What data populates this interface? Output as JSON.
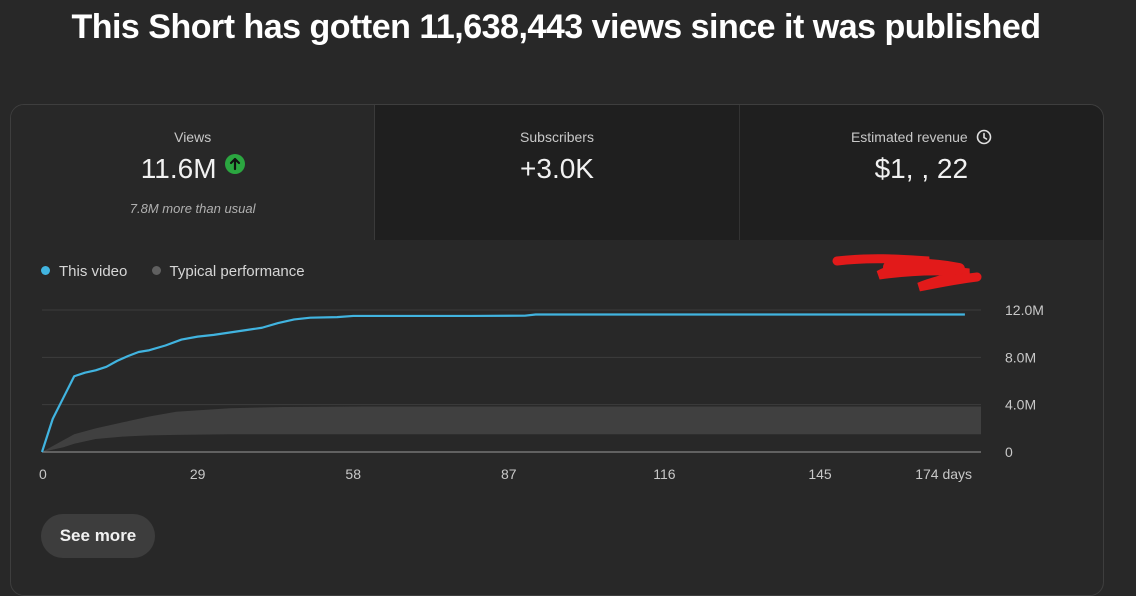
{
  "headline": "This Short has gotten 11,638,443 views since it was published",
  "metrics": {
    "views": {
      "label": "Views",
      "value": "11.6M",
      "sub": "7.8M more than usual",
      "trend_icon": "arrow-up-icon"
    },
    "subscribers": {
      "label": "Subscribers",
      "value": "+3.0K"
    },
    "revenue": {
      "label": "Estimated revenue",
      "value": "$1,  ,  22",
      "icon": "clock-icon",
      "redacted": true
    }
  },
  "legend": [
    {
      "label": "This video",
      "color": "#3ea6ff"
    },
    {
      "label": "Typical performance",
      "color": "#606060"
    }
  ],
  "colors": {
    "line": "#41b4e0",
    "band": "#404040",
    "background": "#282828"
  },
  "see_more_label": "See more",
  "chart_data": {
    "type": "line",
    "x_unit": "days",
    "xlim": [
      0,
      175
    ],
    "ylim": [
      0,
      12000000
    ],
    "y_ticks": [
      "12.0M",
      "8.0M",
      "4.0M",
      "0"
    ],
    "y_tick_values": [
      12000000,
      8000000,
      4000000,
      0
    ],
    "x_ticks": [
      "0",
      "29",
      "58",
      "87",
      "116",
      "145",
      "174 days"
    ],
    "x_tick_values": [
      0,
      29,
      58,
      87,
      116,
      145,
      174
    ],
    "series": [
      {
        "name": "This video",
        "x": [
          0,
          2,
          4,
          6,
          8,
          10,
          12,
          14,
          16,
          18,
          20,
          23,
          26,
          29,
          32,
          35,
          38,
          41,
          44,
          47,
          50,
          55,
          58,
          70,
          80,
          90,
          92,
          120,
          150,
          172
        ],
        "y": [
          0,
          2800000,
          4600000,
          6400000,
          6700000,
          6900000,
          7200000,
          7700000,
          8100000,
          8450000,
          8600000,
          9000000,
          9500000,
          9750000,
          9900000,
          10100000,
          10300000,
          10500000,
          10900000,
          11200000,
          11350000,
          11400000,
          11500000,
          11500000,
          11500000,
          11520000,
          11620000,
          11620000,
          11620000,
          11620000
        ]
      }
    ],
    "typical_range": {
      "name": "Typical performance",
      "x": [
        0,
        4,
        6,
        10,
        15,
        20,
        25,
        35,
        45,
        60,
        90,
        120,
        150,
        175
      ],
      "upper": [
        0,
        1000000,
        1500000,
        2000000,
        2500000,
        3000000,
        3400000,
        3700000,
        3800000,
        3850000,
        3850000,
        3850000,
        3850000,
        3850000
      ],
      "lower": [
        0,
        400000,
        700000,
        1100000,
        1300000,
        1400000,
        1450000,
        1500000,
        1500000,
        1500000,
        1500000,
        1500000,
        1500000,
        1500000
      ]
    }
  }
}
